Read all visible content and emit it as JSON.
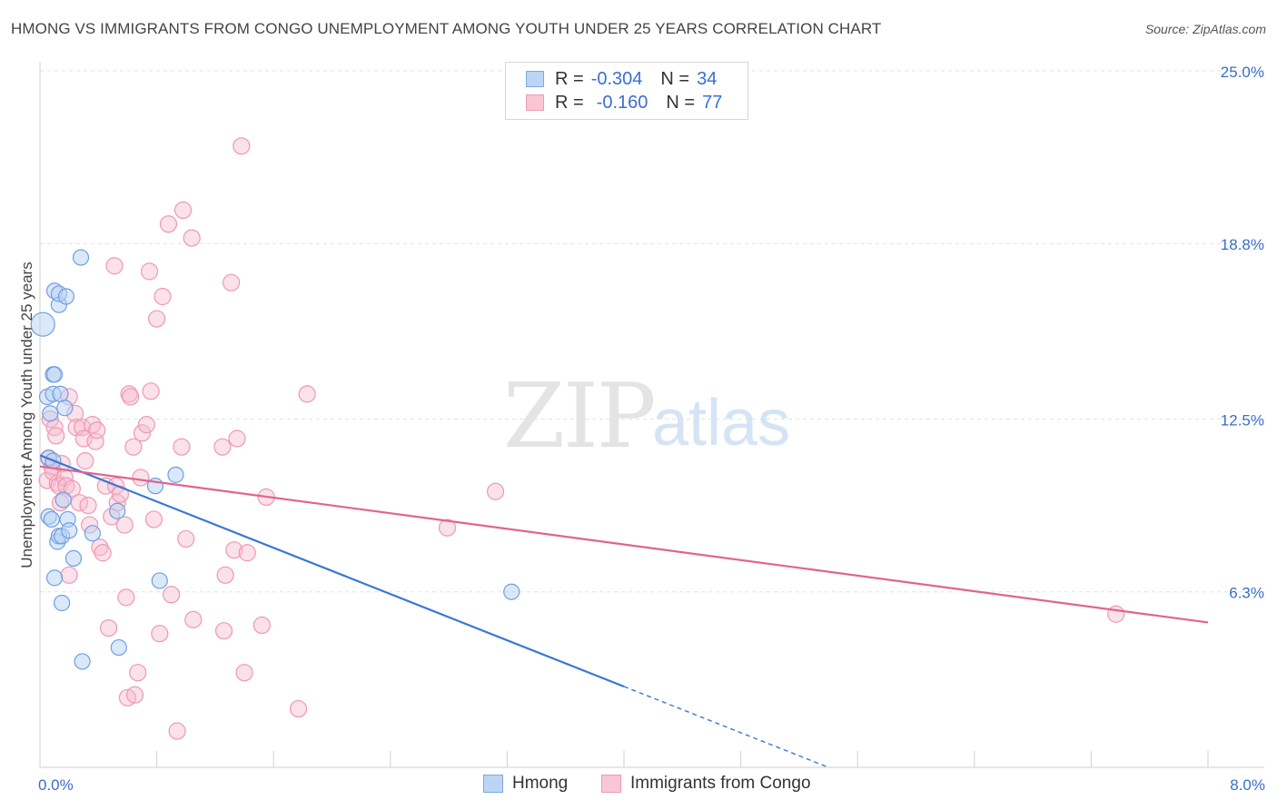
{
  "title": "HMONG VS IMMIGRANTS FROM CONGO UNEMPLOYMENT AMONG YOUTH UNDER 25 YEARS CORRELATION CHART",
  "source": "Source: ZipAtlas.com",
  "watermark": {
    "zip": "ZIP",
    "atlas": "atlas"
  },
  "legend": {
    "rows": [
      {
        "r_label": "R =",
        "r_value": "-0.304",
        "n_label": "N =",
        "n_value": "34"
      },
      {
        "r_label": "R =",
        "r_value": "-0.160",
        "n_label": "N =",
        "n_value": "77"
      }
    ]
  },
  "chart_data": {
    "type": "scatter",
    "title": "HMONG VS IMMIGRANTS FROM CONGO UNEMPLOYMENT AMONG YOUTH UNDER 25 YEARS CORRELATION CHART",
    "xlabel": "",
    "ylabel": "Unemployment Among Youth under 25 years",
    "xlim": [
      0,
      8
    ],
    "ylim": [
      0,
      25
    ],
    "x_tick_labels": [
      "0.0%",
      "8.0%"
    ],
    "y_ticks": [
      6.3,
      12.5,
      18.8,
      25.0
    ],
    "y_tick_labels": [
      "6.3%",
      "12.5%",
      "18.8%",
      "25.0%"
    ],
    "grid": true,
    "colors": {
      "hmong": "#8ab4ea",
      "hmong_line": "#3a78d4",
      "congo": "#f2a6be",
      "congo_line": "#e0648f",
      "tick_label": "#3a6fc8"
    },
    "series": [
      {
        "name": "Hmong",
        "points": [
          [
            0.02,
            15.9
          ],
          [
            0.05,
            13.3
          ],
          [
            0.06,
            11.1
          ],
          [
            0.06,
            9.0
          ],
          [
            0.07,
            12.7
          ],
          [
            0.08,
            8.9
          ],
          [
            0.09,
            14.1
          ],
          [
            0.09,
            11.0
          ],
          [
            0.09,
            13.4
          ],
          [
            0.1,
            14.1
          ],
          [
            0.1,
            17.1
          ],
          [
            0.1,
            6.8
          ],
          [
            0.12,
            8.1
          ],
          [
            0.13,
            8.3
          ],
          [
            0.13,
            16.6
          ],
          [
            0.13,
            17.0
          ],
          [
            0.14,
            13.4
          ],
          [
            0.15,
            5.9
          ],
          [
            0.15,
            8.3
          ],
          [
            0.16,
            9.6
          ],
          [
            0.17,
            12.9
          ],
          [
            0.18,
            16.9
          ],
          [
            0.19,
            8.9
          ],
          [
            0.2,
            8.5
          ],
          [
            0.23,
            7.5
          ],
          [
            0.28,
            18.3
          ],
          [
            0.29,
            3.8
          ],
          [
            0.36,
            8.4
          ],
          [
            0.54,
            4.3
          ],
          [
            0.53,
            9.2
          ],
          [
            0.79,
            10.1
          ],
          [
            0.82,
            6.7
          ],
          [
            0.93,
            10.5
          ],
          [
            3.23,
            6.3
          ]
        ]
      },
      {
        "name": "Immigrants from Congo",
        "points": [
          [
            0.05,
            10.3
          ],
          [
            0.06,
            11.1
          ],
          [
            0.07,
            12.5
          ],
          [
            0.08,
            10.8
          ],
          [
            0.09,
            10.6
          ],
          [
            0.1,
            12.2
          ],
          [
            0.11,
            11.9
          ],
          [
            0.12,
            10.2
          ],
          [
            0.13,
            10.1
          ],
          [
            0.14,
            9.5
          ],
          [
            0.15,
            10.9
          ],
          [
            0.17,
            10.4
          ],
          [
            0.18,
            10.1
          ],
          [
            0.2,
            13.3
          ],
          [
            0.2,
            6.9
          ],
          [
            0.22,
            10.0
          ],
          [
            0.24,
            12.7
          ],
          [
            0.25,
            12.2
          ],
          [
            0.27,
            9.5
          ],
          [
            0.29,
            12.2
          ],
          [
            0.3,
            11.8
          ],
          [
            0.31,
            11.0
          ],
          [
            0.33,
            9.4
          ],
          [
            0.34,
            8.7
          ],
          [
            0.36,
            12.3
          ],
          [
            0.38,
            11.7
          ],
          [
            0.39,
            12.1
          ],
          [
            0.41,
            7.9
          ],
          [
            0.43,
            7.7
          ],
          [
            0.45,
            10.1
          ],
          [
            0.47,
            5.0
          ],
          [
            0.49,
            9.0
          ],
          [
            0.51,
            18.0
          ],
          [
            0.52,
            10.1
          ],
          [
            0.53,
            9.5
          ],
          [
            0.55,
            9.8
          ],
          [
            0.58,
            8.7
          ],
          [
            0.59,
            6.1
          ],
          [
            0.6,
            2.5
          ],
          [
            0.61,
            13.4
          ],
          [
            0.62,
            13.3
          ],
          [
            0.64,
            11.5
          ],
          [
            0.65,
            2.6
          ],
          [
            0.67,
            3.4
          ],
          [
            0.69,
            10.4
          ],
          [
            0.7,
            12.0
          ],
          [
            0.73,
            12.3
          ],
          [
            0.75,
            17.8
          ],
          [
            0.76,
            13.5
          ],
          [
            0.78,
            8.9
          ],
          [
            0.8,
            16.1
          ],
          [
            0.82,
            4.8
          ],
          [
            0.84,
            16.9
          ],
          [
            0.88,
            19.5
          ],
          [
            0.9,
            6.2
          ],
          [
            0.94,
            1.3
          ],
          [
            0.97,
            11.5
          ],
          [
            0.98,
            20.0
          ],
          [
            1.0,
            8.2
          ],
          [
            1.04,
            19.0
          ],
          [
            1.05,
            5.3
          ],
          [
            1.25,
            11.5
          ],
          [
            1.26,
            4.9
          ],
          [
            1.27,
            6.9
          ],
          [
            1.31,
            17.4
          ],
          [
            1.33,
            7.8
          ],
          [
            1.35,
            11.8
          ],
          [
            1.42,
            7.7
          ],
          [
            1.4,
            3.4
          ],
          [
            1.38,
            22.3
          ],
          [
            1.52,
            5.1
          ],
          [
            1.55,
            9.7
          ],
          [
            1.77,
            2.1
          ],
          [
            1.83,
            13.4
          ],
          [
            2.79,
            8.6
          ],
          [
            3.12,
            9.9
          ],
          [
            7.37,
            5.5
          ]
        ]
      }
    ],
    "trendlines": [
      {
        "series": "Hmong",
        "x_start": 0.0,
        "y_start": 11.2,
        "x_solid_end": 4.0,
        "y_solid_end": 2.9,
        "x_dashed_end": 5.4,
        "y_dashed_end": 0.0
      },
      {
        "series": "Immigrants from Congo",
        "x_start": 0.0,
        "y_start": 10.8,
        "x_end": 8.0,
        "y_end": 5.2
      }
    ]
  },
  "bottom_legend": {
    "items": [
      "Hmong",
      "Immigrants from Congo"
    ]
  }
}
